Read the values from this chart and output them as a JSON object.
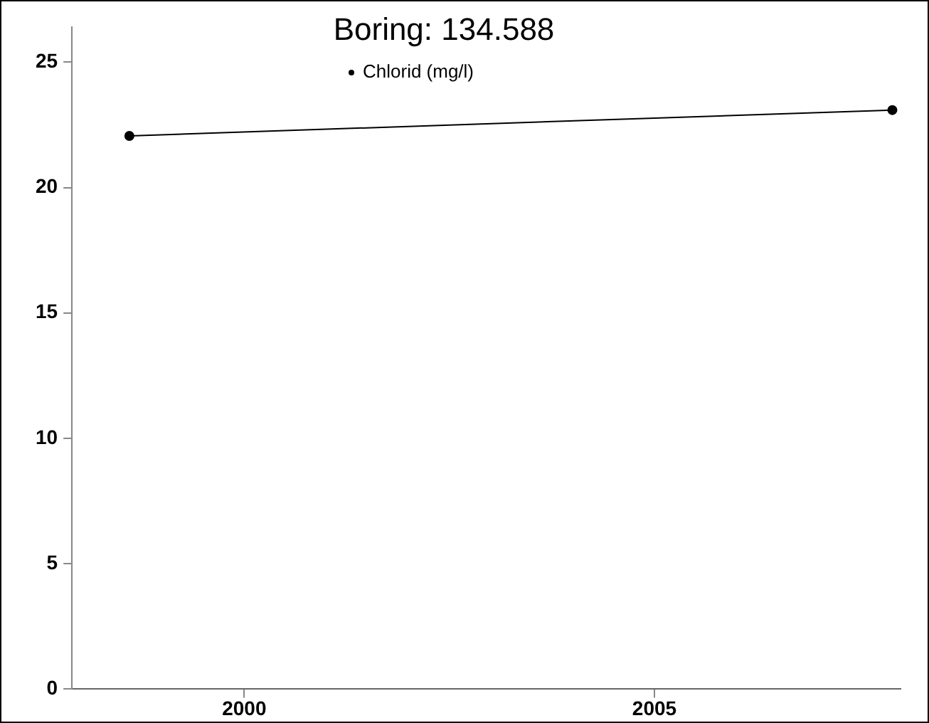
{
  "chart_data": {
    "type": "line",
    "title": "Boring: 134.588",
    "x": [
      1998.6,
      2007.9
    ],
    "series": [
      {
        "name": "Chlorid (mg/l)",
        "color": "#000000",
        "values": [
          22.06,
          23.09
        ]
      }
    ],
    "xlim": [
      1997.9,
      2008.0
    ],
    "xticks": [
      2000,
      2005
    ],
    "ylim": [
      0,
      26.4
    ],
    "yticks": [
      0,
      5,
      10,
      15,
      20,
      25
    ],
    "grid": false,
    "legend": "top",
    "marker": "circle",
    "line_style": "solid"
  }
}
